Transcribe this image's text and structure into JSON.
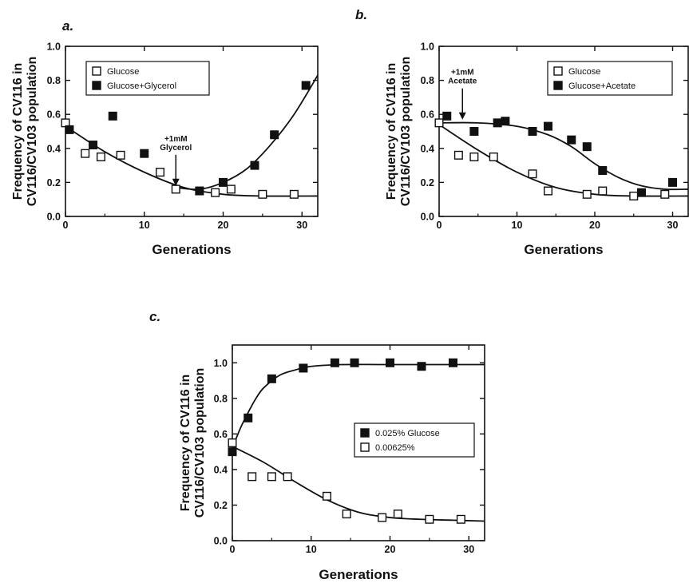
{
  "chart_data": [
    {
      "type": "scatter",
      "panel_label": "a.",
      "xlabel": "Generations",
      "ylabel": [
        "Frequency of CV116 in",
        "CV116/CV103 population"
      ],
      "xlim": [
        0,
        32
      ],
      "ylim": [
        0,
        1.0
      ],
      "xticks": [
        0,
        10,
        20,
        30
      ],
      "yticks": [
        0.0,
        0.2,
        0.4,
        0.6,
        0.8,
        1.0
      ],
      "legend_position": "top-left",
      "series": [
        {
          "name": "Glucose",
          "marker": "open-square",
          "x": [
            0,
            2.5,
            4.5,
            7,
            12,
            14,
            19,
            21,
            25,
            29
          ],
          "y": [
            0.55,
            0.37,
            0.35,
            0.36,
            0.26,
            0.16,
            0.14,
            0.16,
            0.13,
            0.13
          ],
          "fit_curve": {
            "x": [
              0,
              5,
              10,
              15,
              20,
              25,
              32
            ],
            "y": [
              0.53,
              0.38,
              0.26,
              0.17,
              0.13,
              0.12,
              0.12
            ]
          }
        },
        {
          "name": "Glucose+Glycerol",
          "marker": "filled-square",
          "x": [
            0.5,
            3.5,
            6,
            10,
            17,
            20,
            24,
            26.5,
            30.5
          ],
          "y": [
            0.51,
            0.42,
            0.59,
            0.37,
            0.15,
            0.2,
            0.3,
            0.48,
            0.77
          ],
          "fit_curve": {
            "x": [
              14,
              17,
              20,
              23,
              26,
              29,
              32
            ],
            "y": [
              0.17,
              0.16,
              0.2,
              0.28,
              0.42,
              0.6,
              0.83
            ]
          }
        }
      ],
      "annotations": [
        {
          "text": [
            "+1mM",
            "Glycerol"
          ],
          "x": 14,
          "y": 0.17,
          "type": "arrow-down"
        }
      ]
    },
    {
      "type": "scatter",
      "panel_label": "b.",
      "xlabel": "Generations",
      "ylabel": [
        "Frequency of CV116 in",
        "CV116/CV103 population"
      ],
      "xlim": [
        0,
        32
      ],
      "ylim": [
        0,
        1.0
      ],
      "xticks": [
        0,
        10,
        20,
        30
      ],
      "yticks": [
        0.0,
        0.2,
        0.4,
        0.6,
        0.8,
        1.0
      ],
      "legend_position": "top-right",
      "series": [
        {
          "name": "Glucose",
          "marker": "open-square",
          "x": [
            0,
            2.5,
            4.5,
            7,
            12,
            14,
            19,
            21,
            25,
            29
          ],
          "y": [
            0.55,
            0.36,
            0.35,
            0.35,
            0.25,
            0.15,
            0.13,
            0.15,
            0.12,
            0.13
          ],
          "fit_curve": {
            "x": [
              0,
              5,
              10,
              15,
              20,
              25,
              32
            ],
            "y": [
              0.54,
              0.39,
              0.26,
              0.17,
              0.13,
              0.12,
              0.12
            ]
          }
        },
        {
          "name": "Glucose+Acetate",
          "marker": "filled-square",
          "x": [
            1,
            4.5,
            7.5,
            8.5,
            12,
            14,
            17,
            19,
            21,
            26,
            30
          ],
          "y": [
            0.59,
            0.5,
            0.55,
            0.56,
            0.5,
            0.53,
            0.45,
            0.41,
            0.27,
            0.14,
            0.2
          ],
          "fit_curve": {
            "x": [
              0,
              5,
              10,
              14,
              17,
              20,
              23,
              26,
              29,
              32
            ],
            "y": [
              0.55,
              0.55,
              0.53,
              0.48,
              0.41,
              0.31,
              0.23,
              0.18,
              0.16,
              0.16
            ]
          }
        }
      ],
      "annotations": [
        {
          "text": [
            "+1mM",
            "Acetate"
          ],
          "x": 3,
          "y": 0.56,
          "type": "arrow-down"
        }
      ]
    },
    {
      "type": "scatter",
      "panel_label": "c.",
      "xlabel": "Generations",
      "ylabel": [
        "Frequency of CV116 in",
        "CV116/CV103 population"
      ],
      "xlim": [
        0,
        32
      ],
      "ylim": [
        0,
        1.1
      ],
      "xticks": [
        0,
        10,
        20,
        30
      ],
      "yticks": [
        0.0,
        0.2,
        0.4,
        0.6,
        0.8,
        1.0
      ],
      "legend_position": "middle-right",
      "series": [
        {
          "name": "0.025% Glucose",
          "marker": "filled-square",
          "x": [
            0,
            2,
            5,
            9,
            13,
            15.5,
            20,
            24,
            28
          ],
          "y": [
            0.5,
            0.69,
            0.91,
            0.97,
            1.0,
            1.0,
            1.0,
            0.98,
            1.0
          ],
          "fit_curve": {
            "x": [
              0,
              1,
              2,
              3,
              4,
              6,
              8,
              10,
              14,
              20,
              32
            ],
            "y": [
              0.52,
              0.63,
              0.72,
              0.8,
              0.86,
              0.93,
              0.96,
              0.98,
              0.99,
              0.99,
              0.99
            ]
          }
        },
        {
          "name": "0.00625%",
          "marker": "open-square",
          "x": [
            0,
            2.5,
            5,
            7,
            12,
            14.5,
            19,
            21,
            25,
            29
          ],
          "y": [
            0.55,
            0.36,
            0.36,
            0.36,
            0.25,
            0.15,
            0.13,
            0.15,
            0.12,
            0.12
          ],
          "fit_curve": {
            "x": [
              0,
              4,
              8,
              12,
              16,
              20,
              24,
              28,
              32
            ],
            "y": [
              0.53,
              0.44,
              0.33,
              0.23,
              0.16,
              0.13,
              0.12,
              0.115,
              0.11
            ]
          }
        }
      ]
    }
  ]
}
